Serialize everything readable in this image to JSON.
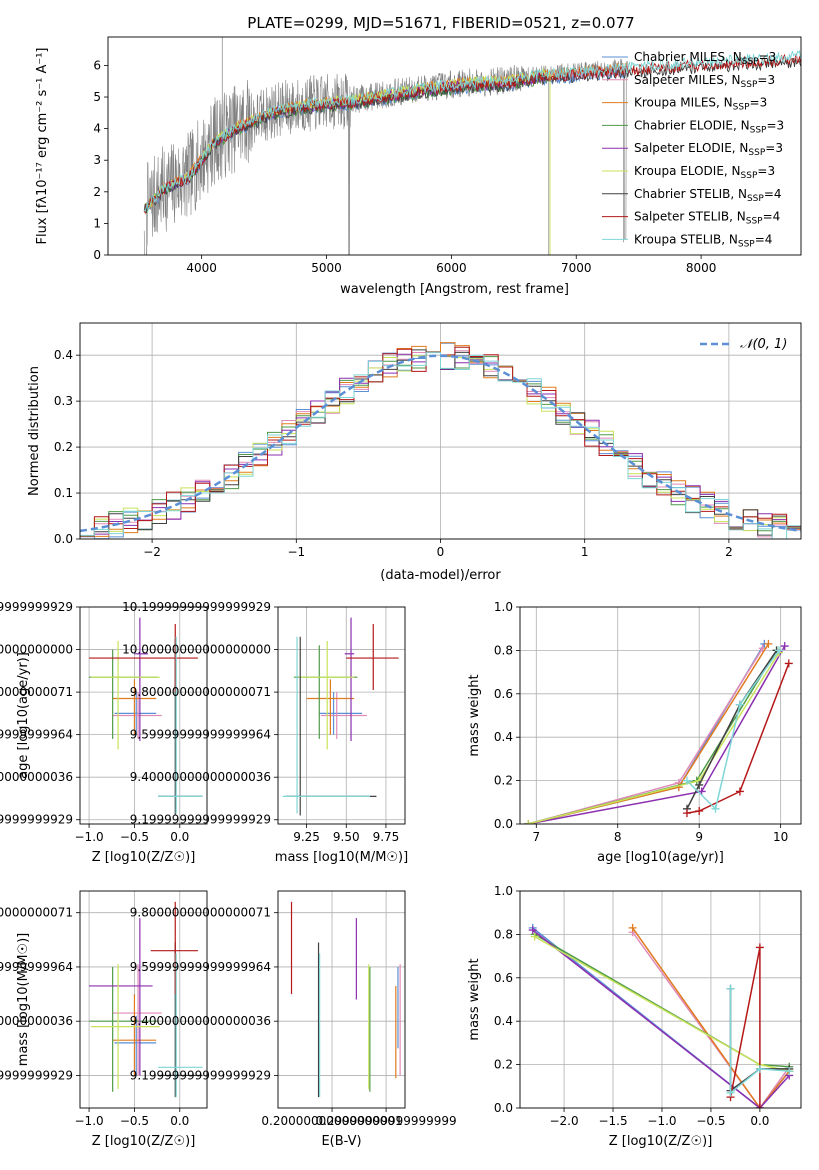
{
  "figure_title": "PLATE=0299, MJD=51671, FIBERID=0521, z=0.077",
  "colors": {
    "Chabrier MILES": "#5b8fd6",
    "Salpeter MILES": "#e08ab8",
    "Kroupa MILES": "#e07b1f",
    "Chabrier ELODIE": "#4f9a48",
    "Salpeter ELODIE": "#8b2fb0",
    "Kroupa ELODIE": "#c8e35a",
    "Chabrier STELIB": "#404040",
    "Salpeter STELIB": "#b51818",
    "Kroupa STELIB": "#7fd6d6",
    "data": "#808080"
  },
  "chart_data": [
    {
      "id": "spectrum",
      "type": "line",
      "xlabel": "wavelength [Angstrom, rest frame]",
      "ylabel": "Flux [fλ10⁻¹⁷ erg cm⁻² s⁻¹ A⁻¹]",
      "xlim": [
        3250,
        8800
      ],
      "ylim": [
        0,
        6.9
      ],
      "xticks": [
        4000,
        5000,
        6000,
        7000,
        8000
      ],
      "yticks": [
        0,
        1,
        2,
        3,
        4,
        5,
        6
      ],
      "grid": false,
      "legend": "right",
      "continuum": {
        "x": [
          3550,
          3700,
          3900,
          4100,
          4300,
          4600,
          4900,
          5200,
          5500,
          5800,
          6100,
          6400,
          6700,
          7000,
          7300,
          7600,
          8000,
          8400,
          8800
        ],
        "y": [
          1.5,
          2.1,
          2.5,
          3.6,
          4.1,
          4.6,
          4.8,
          4.9,
          5.1,
          5.3,
          5.45,
          5.5,
          5.7,
          5.8,
          5.9,
          6.0,
          6.1,
          6.2,
          6.3
        ]
      },
      "series": [
        {
          "name": "Chabrier MILES, N_SSP=3"
        },
        {
          "name": "Salpeter MILES, N_SSP=3"
        },
        {
          "name": "Kroupa MILES, N_SSP=3"
        },
        {
          "name": "Chabrier ELODIE, N_SSP=3"
        },
        {
          "name": "Salpeter ELODIE, N_SSP=3"
        },
        {
          "name": "Kroupa ELODIE, N_SSP=3"
        },
        {
          "name": "Chabrier STELIB, N_SSP=4"
        },
        {
          "name": "Salpeter STELIB, N_SSP=4"
        },
        {
          "name": "Kroupa STELIB, N_SSP=4"
        }
      ]
    },
    {
      "id": "residuals",
      "type": "step",
      "xlabel": "(data-model)/error",
      "ylabel": "Normed distribution",
      "xlim": [
        -2.5,
        2.5
      ],
      "ylim": [
        0,
        0.47
      ],
      "xticks": [
        -2,
        -1,
        0,
        1,
        2
      ],
      "yticks": [
        0.0,
        0.1,
        0.2,
        0.3,
        0.4
      ],
      "grid": true,
      "legend": "top-right",
      "reference": {
        "name": "N(0,1)",
        "mu": 0,
        "sigma": 1
      },
      "bin_width": 0.1
    },
    {
      "id": "age_vs_Z",
      "type": "errorbar",
      "xlabel": "Z [log10(Z/Z☉)]",
      "ylabel": "age  [log10(age/yr)]",
      "xlim": [
        -1.1,
        0.3
      ],
      "ylim": [
        9.18,
        10.2
      ],
      "xticks": [
        -1.0,
        -0.5,
        0.0
      ],
      "yticks": [
        9.2,
        9.4,
        9.6,
        9.8,
        10.0,
        10.2
      ],
      "grid": true,
      "points": [
        {
          "s": "Chabrier MILES",
          "x": -0.48,
          "y": 9.7,
          "xl": -0.72,
          "xh": -0.26,
          "yl": 9.6,
          "yh": 9.8
        },
        {
          "s": "Salpeter MILES",
          "x": -0.46,
          "y": 9.69,
          "xl": -0.74,
          "xh": -0.2,
          "yl": 9.58,
          "yh": 9.8
        },
        {
          "s": "Kroupa MILES",
          "x": -0.5,
          "y": 9.77,
          "xl": -0.74,
          "xh": -0.26,
          "yl": 9.6,
          "yh": 9.86
        },
        {
          "s": "Chabrier ELODIE",
          "x": -0.74,
          "y": 9.87,
          "xl": -1.0,
          "xh": -0.24,
          "yl": 9.58,
          "yh": 10.0
        },
        {
          "s": "Salpeter ELODIE",
          "x": -0.44,
          "y": 9.98,
          "xl": -0.5,
          "xh": -0.35,
          "yl": 9.57,
          "yh": 10.15
        },
        {
          "s": "Kroupa ELODIE",
          "x": -0.68,
          "y": 9.87,
          "xl": -0.98,
          "xh": -0.22,
          "yl": 9.53,
          "yh": 10.04
        },
        {
          "s": "Chabrier STELIB",
          "x": -0.05,
          "y": 9.31,
          "xl": -0.24,
          "xh": 0.25,
          "yl": 9.22,
          "yh": 10.05
        },
        {
          "s": "Salpeter STELIB",
          "x": -0.05,
          "y": 9.96,
          "xl": -1.0,
          "xh": 0.2,
          "yl": 9.8,
          "yh": 10.12
        },
        {
          "s": "Kroupa STELIB",
          "x": -0.04,
          "y": 9.31,
          "xl": -0.24,
          "xh": 0.25,
          "yl": 9.23,
          "yh": 10.06
        }
      ]
    },
    {
      "id": "age_vs_mass",
      "type": "errorbar",
      "xlabel": "mass [log10(M/M☉)]",
      "ylabel": "",
      "xlim": [
        9.07,
        9.87
      ],
      "ylim": [
        9.18,
        10.2
      ],
      "xticks": [
        9.25,
        9.5,
        9.75
      ],
      "yticks": [
        9.2,
        9.4,
        9.6,
        9.8,
        10.0,
        10.2
      ],
      "grid": true,
      "points": [
        {
          "s": "Chabrier MILES",
          "x": 9.42,
          "y": 9.7,
          "xl": 9.33,
          "xh": 9.6,
          "yl": 9.6,
          "yh": 9.8
        },
        {
          "s": "Salpeter MILES",
          "x": 9.44,
          "y": 9.69,
          "xl": 9.34,
          "xh": 9.63,
          "yl": 9.58,
          "yh": 9.8
        },
        {
          "s": "Kroupa MILES",
          "x": 9.4,
          "y": 9.77,
          "xl": 9.25,
          "xh": 9.55,
          "yl": 9.6,
          "yh": 9.86
        },
        {
          "s": "Chabrier ELODIE",
          "x": 9.33,
          "y": 9.87,
          "xl": 9.17,
          "xh": 9.57,
          "yl": 9.58,
          "yh": 10.02
        },
        {
          "s": "Salpeter ELODIE",
          "x": 9.53,
          "y": 9.98,
          "xl": 9.49,
          "xh": 9.55,
          "yl": 9.57,
          "yh": 10.15
        },
        {
          "s": "Kroupa ELODIE",
          "x": 9.38,
          "y": 9.87,
          "xl": 9.2,
          "xh": 9.55,
          "yl": 9.53,
          "yh": 10.04
        },
        {
          "s": "Chabrier STELIB",
          "x": 9.21,
          "y": 9.31,
          "xl": 9.12,
          "xh": 9.69,
          "yl": 9.22,
          "yh": 10.06
        },
        {
          "s": "Salpeter STELIB",
          "x": 9.67,
          "y": 9.96,
          "xl": 9.5,
          "xh": 9.83,
          "yl": 9.81,
          "yh": 10.12
        },
        {
          "s": "Kroupa STELIB",
          "x": 9.19,
          "y": 9.31,
          "xl": 9.1,
          "xh": 9.65,
          "yl": 9.23,
          "yh": 10.06
        }
      ]
    },
    {
      "id": "weight_vs_age",
      "type": "line",
      "xlabel": "age  [log10(age/yr)]",
      "ylabel": "mass weight",
      "xlim": [
        6.8,
        10.25
      ],
      "ylim": [
        0,
        1.0
      ],
      "xticks": [
        7,
        8,
        9,
        10
      ],
      "yticks": [
        0.0,
        0.2,
        0.4,
        0.6,
        0.8,
        1.0
      ],
      "grid": true,
      "series": [
        {
          "s": "Chabrier MILES",
          "x": [
            6.9,
            8.75,
            9.8
          ],
          "y": [
            0.0,
            0.17,
            0.83
          ]
        },
        {
          "s": "Salpeter MILES",
          "x": [
            6.9,
            8.75,
            9.78
          ],
          "y": [
            0.0,
            0.19,
            0.81
          ]
        },
        {
          "s": "Kroupa MILES",
          "x": [
            6.9,
            8.75,
            9.85
          ],
          "y": [
            0.0,
            0.17,
            0.83
          ]
        },
        {
          "s": "Chabrier ELODIE",
          "x": [
            6.9,
            8.97,
            9.95
          ],
          "y": [
            0.0,
            0.2,
            0.8
          ]
        },
        {
          "s": "Salpeter ELODIE",
          "x": [
            6.9,
            9.03,
            10.05
          ],
          "y": [
            0.0,
            0.15,
            0.82
          ]
        },
        {
          "s": "Kroupa ELODIE",
          "x": [
            6.9,
            9.0,
            9.98
          ],
          "y": [
            0.0,
            0.2,
            0.79
          ]
        },
        {
          "s": "Chabrier STELIB",
          "x": [
            8.85,
            9.0,
            9.5,
            9.95
          ],
          "y": [
            0.07,
            0.18,
            0.55,
            0.8
          ]
        },
        {
          "s": "Salpeter STELIB",
          "x": [
            8.85,
            9.0,
            9.5,
            10.1
          ],
          "y": [
            0.05,
            0.06,
            0.15,
            0.74
          ]
        },
        {
          "s": "Kroupa STELIB",
          "x": [
            8.85,
            9.2,
            9.5,
            9.98
          ],
          "y": [
            0.2,
            0.07,
            0.55,
            0.8
          ]
        }
      ]
    },
    {
      "id": "mass_vs_Z",
      "type": "errorbar",
      "xlabel": "Z [log10(Z/Z☉)]",
      "ylabel": "mass [log10(M/M☉)]",
      "xlim": [
        -1.1,
        0.3
      ],
      "ylim": [
        9.08,
        9.88
      ],
      "xticks": [
        -1.0,
        -0.5,
        0.0
      ],
      "yticks": [
        9.2,
        9.4,
        9.6,
        9.8
      ],
      "grid": true,
      "points": [
        {
          "s": "Chabrier MILES",
          "x": -0.48,
          "y": 9.32,
          "xl": -0.72,
          "xh": -0.26,
          "yl": 9.2,
          "yh": 9.42
        },
        {
          "s": "Salpeter MILES",
          "x": -0.46,
          "y": 9.43,
          "xl": -0.74,
          "xh": -0.2,
          "yl": 9.2,
          "yh": 9.61
        },
        {
          "s": "Kroupa MILES",
          "x": -0.5,
          "y": 9.33,
          "xl": -0.74,
          "xh": -0.26,
          "yl": 9.2,
          "yh": 9.5
        },
        {
          "s": "Chabrier ELODIE",
          "x": -0.74,
          "y": 9.4,
          "xl": -1.0,
          "xh": -0.24,
          "yl": 9.14,
          "yh": 9.6
        },
        {
          "s": "Salpeter ELODIE",
          "x": -0.44,
          "y": 9.53,
          "xl": -1.0,
          "xh": -0.3,
          "yl": 9.2,
          "yh": 9.78
        },
        {
          "s": "Kroupa ELODIE",
          "x": -0.68,
          "y": 9.38,
          "xl": -0.98,
          "xh": -0.22,
          "yl": 9.15,
          "yh": 9.61
        },
        {
          "s": "Chabrier STELIB",
          "x": -0.05,
          "y": 9.2,
          "xl": -0.24,
          "xh": 0.25,
          "yl": 9.12,
          "yh": 9.69
        },
        {
          "s": "Salpeter STELIB",
          "x": -0.05,
          "y": 9.66,
          "xl": -0.32,
          "xh": 0.2,
          "yl": 9.5,
          "yh": 9.84
        },
        {
          "s": "Kroupa STELIB",
          "x": -0.04,
          "y": 9.23,
          "xl": -0.24,
          "xh": 0.25,
          "yl": 9.12,
          "yh": 9.65
        }
      ]
    },
    {
      "id": "mass_vs_EBV",
      "type": "errorbar",
      "xlabel": "E(B-V)",
      "ylabel": "",
      "xlim": [
        0.1,
        0.335
      ],
      "ylim": [
        9.08,
        9.88
      ],
      "xticks": [
        0.2,
        0.3
      ],
      "yticks": [
        9.2,
        9.4,
        9.6,
        9.8
      ],
      "grid": true,
      "points": [
        {
          "s": "Chabrier MILES",
          "x": 0.322,
          "y": 9.5,
          "yl": 9.3,
          "yh": 9.6
        },
        {
          "s": "Salpeter MILES",
          "x": 0.326,
          "y": 9.4,
          "yl": 9.2,
          "yh": 9.61
        },
        {
          "s": "Kroupa MILES",
          "x": 0.318,
          "y": 9.35,
          "yl": 9.19,
          "yh": 9.53
        },
        {
          "s": "Chabrier ELODIE",
          "x": 0.27,
          "y": 9.38,
          "yl": 9.14,
          "yh": 9.6
        },
        {
          "s": "Salpeter ELODIE",
          "x": 0.245,
          "y": 9.63,
          "yl": 9.48,
          "yh": 9.78
        },
        {
          "s": "Kroupa ELODIE",
          "x": 0.268,
          "y": 9.38,
          "yl": 9.15,
          "yh": 9.61
        },
        {
          "s": "Chabrier STELIB",
          "x": 0.175,
          "y": 9.6,
          "yl": 9.12,
          "yh": 9.69
        },
        {
          "s": "Salpeter STELIB",
          "x": 0.125,
          "y": 9.66,
          "yl": 9.5,
          "yh": 9.84
        },
        {
          "s": "Kroupa STELIB",
          "x": 0.177,
          "y": 9.4,
          "yl": 9.12,
          "yh": 9.65
        }
      ]
    },
    {
      "id": "weight_vs_Z",
      "type": "line",
      "xlabel": "Z [log10(Z/Z☉)]",
      "ylabel": "mass weight",
      "xlim": [
        -2.45,
        0.42
      ],
      "ylim": [
        0,
        1.0
      ],
      "xticks": [
        -2.0,
        -1.5,
        -1.0,
        -0.5,
        0.0
      ],
      "yticks": [
        0.0,
        0.2,
        0.4,
        0.6,
        0.8,
        1.0
      ],
      "grid": true,
      "series": [
        {
          "s": "Chabrier MILES",
          "x": [
            -2.32,
            0.0,
            0.3
          ],
          "y": [
            0.83,
            0.0,
            0.17
          ]
        },
        {
          "s": "Salpeter MILES",
          "x": [
            -1.3,
            0.0,
            0.3
          ],
          "y": [
            0.81,
            0.0,
            0.19
          ]
        },
        {
          "s": "Kroupa MILES",
          "x": [
            -1.3,
            0.0,
            0.3
          ],
          "y": [
            0.83,
            0.0,
            0.17
          ]
        },
        {
          "s": "Chabrier ELODIE",
          "x": [
            -2.3,
            0.0,
            0.3
          ],
          "y": [
            0.8,
            0.2,
            0.19
          ]
        },
        {
          "s": "Salpeter ELODIE",
          "x": [
            -2.32,
            0.0,
            0.3
          ],
          "y": [
            0.82,
            0.0,
            0.15
          ]
        },
        {
          "s": "Kroupa ELODIE",
          "x": [
            -2.3,
            0.0,
            0.3
          ],
          "y": [
            0.79,
            0.2,
            0.17
          ]
        },
        {
          "s": "Chabrier STELIB",
          "x": [
            -0.3,
            -0.3,
            0.0,
            0.3
          ],
          "y": [
            0.55,
            0.08,
            0.18,
            0.18
          ]
        },
        {
          "s": "Salpeter STELIB",
          "x": [
            -0.3,
            0.0,
            0.0
          ],
          "y": [
            0.05,
            0.74,
            0.0
          ]
        },
        {
          "s": "Kroupa STELIB",
          "x": [
            -0.3,
            -0.3,
            0.0,
            0.3
          ],
          "y": [
            0.55,
            0.07,
            0.18,
            0.17
          ]
        }
      ]
    }
  ]
}
